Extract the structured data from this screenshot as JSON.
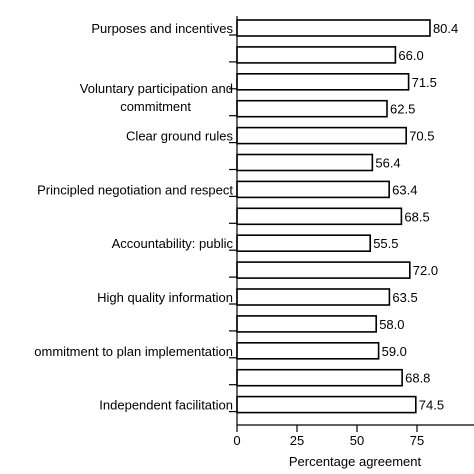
{
  "chart_data": {
    "type": "bar",
    "orientation": "horizontal",
    "title": "",
    "xlabel": "Percentage agreement",
    "ylabel": "",
    "xlim": [
      0,
      100
    ],
    "xticks": [
      0,
      25,
      50,
      75
    ],
    "grid": false,
    "categories": [
      "Purposes and incentives",
      "",
      "Voluntary participation and commitment",
      "",
      "Clear ground rules",
      "",
      "Principled negotiation and respect",
      "",
      "Accountability: public",
      "",
      "High quality information",
      "",
      "ommitment to plan implementation",
      "",
      "Independent facilitation"
    ],
    "values": [
      80.4,
      66.0,
      71.5,
      62.5,
      70.5,
      56.4,
      63.4,
      68.5,
      55.5,
      72.0,
      63.5,
      58.0,
      59.0,
      68.8,
      74.5
    ],
    "value_labels": [
      "80.4",
      "66.0",
      "71.5",
      "62.5",
      "70.5",
      "56.4",
      "63.4",
      "68.5",
      "55.5",
      "72.0",
      "63.5",
      "58.0",
      "59.0",
      "68.8",
      "74.5"
    ]
  }
}
